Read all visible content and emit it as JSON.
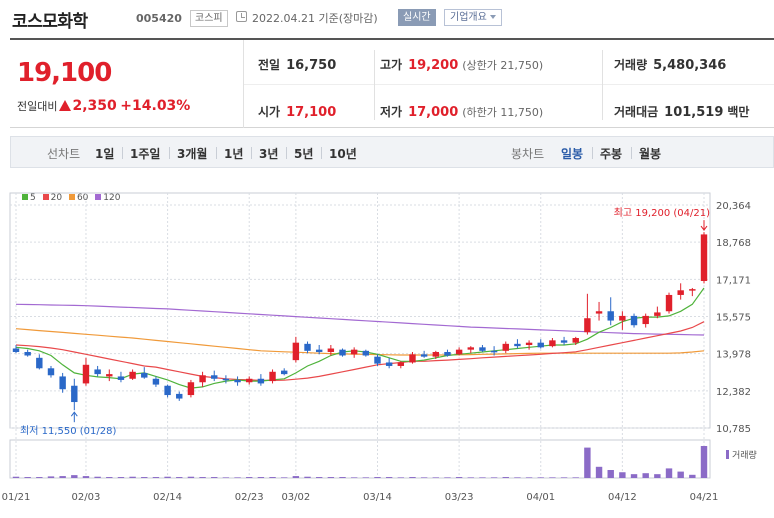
{
  "header": {
    "stock_name": "코스모화학",
    "stock_code": "005420",
    "market": "코스피",
    "date": "2022.04.21 기준(장마감)",
    "live_button": "실시간",
    "overview_button": "기업개요"
  },
  "quote": {
    "price": "19,100",
    "change_label": "전일대비",
    "change_amount": "2,350",
    "change_percent": "+14.03%",
    "prev_close_label": "전일",
    "prev_close": "16,750",
    "open_label": "시가",
    "open": "17,100",
    "high_label": "고가",
    "high": "19,200",
    "upper_limit": "(상한가 21,750)",
    "low_label": "저가",
    "low": "17,000",
    "lower_limit": "(하한가 11,750)",
    "volume_label": "거래량",
    "volume": "5,480,346",
    "amount_label": "거래대금",
    "amount": "101,519",
    "amount_unit": "백만"
  },
  "period_bar": {
    "line_label": "선차트",
    "line_periods": [
      "1일",
      "1주일",
      "3개월",
      "1년",
      "3년",
      "5년",
      "10년"
    ],
    "candle_label": "봉차트",
    "candle_periods": [
      "일봉",
      "주봉",
      "월봉"
    ],
    "selected": "일봉"
  },
  "legend": [
    {
      "label": "5",
      "color": "#4fb33b"
    },
    {
      "label": "20",
      "color": "#e9494b"
    },
    {
      "label": "60",
      "color": "#f09a3a"
    },
    {
      "label": "120",
      "color": "#a36ad2"
    }
  ],
  "chart_data": {
    "type": "candlestick",
    "x_labels": [
      "01/21",
      "02/03",
      "02/14",
      "02/23",
      "03/02",
      "03/14",
      "03/23",
      "04/01",
      "04/12",
      "04/21"
    ],
    "y_ticks": [
      "20,364",
      "18,768",
      "17,171",
      "15,575",
      "13,978",
      "12,382",
      "10,785"
    ],
    "ylim": [
      10785,
      20364
    ],
    "high_annotation": "최고 19,200 (04/21)",
    "low_annotation": "최저 11,550 (01/28)",
    "volume_label": "거래량",
    "candles": [
      {
        "d": "01/21",
        "o": 14200,
        "h": 14350,
        "l": 14000,
        "c": 14050
      },
      {
        "d": "01/24",
        "o": 14050,
        "h": 14150,
        "l": 13850,
        "c": 13900
      },
      {
        "d": "01/25",
        "o": 13800,
        "h": 13950,
        "l": 13300,
        "c": 13350
      },
      {
        "d": "01/26",
        "o": 13350,
        "h": 13450,
        "l": 12950,
        "c": 13050
      },
      {
        "d": "01/27",
        "o": 13000,
        "h": 13150,
        "l": 12300,
        "c": 12450
      },
      {
        "d": "01/28",
        "o": 12600,
        "h": 12900,
        "l": 11550,
        "c": 11900
      },
      {
        "d": "02/03",
        "o": 12700,
        "h": 13800,
        "l": 12600,
        "c": 13500
      },
      {
        "d": "02/04",
        "o": 13300,
        "h": 13450,
        "l": 13000,
        "c": 13100
      },
      {
        "d": "02/07",
        "o": 13000,
        "h": 13300,
        "l": 12800,
        "c": 13100
      },
      {
        "d": "02/08",
        "o": 13000,
        "h": 13200,
        "l": 12750,
        "c": 12850
      },
      {
        "d": "02/09",
        "o": 12900,
        "h": 13300,
        "l": 12850,
        "c": 13200
      },
      {
        "d": "02/10",
        "o": 13150,
        "h": 13400,
        "l": 12900,
        "c": 12950
      },
      {
        "d": "02/11",
        "o": 12900,
        "h": 13000,
        "l": 12550,
        "c": 12650
      },
      {
        "d": "02/14",
        "o": 12600,
        "h": 12650,
        "l": 12100,
        "c": 12200
      },
      {
        "d": "02/15",
        "o": 12250,
        "h": 12350,
        "l": 11950,
        "c": 12050
      },
      {
        "d": "02/16",
        "o": 12200,
        "h": 12850,
        "l": 12100,
        "c": 12750
      },
      {
        "d": "02/17",
        "o": 12750,
        "h": 13200,
        "l": 12550,
        "c": 13050
      },
      {
        "d": "02/18",
        "o": 13050,
        "h": 13250,
        "l": 12800,
        "c": 12900
      },
      {
        "d": "02/21",
        "o": 12900,
        "h": 13050,
        "l": 12700,
        "c": 12850
      },
      {
        "d": "02/22",
        "o": 12850,
        "h": 13000,
        "l": 12600,
        "c": 12750
      },
      {
        "d": "02/23",
        "o": 12750,
        "h": 13000,
        "l": 12650,
        "c": 12900
      },
      {
        "d": "02/24",
        "o": 12900,
        "h": 13100,
        "l": 12600,
        "c": 12700
      },
      {
        "d": "02/25",
        "o": 12800,
        "h": 13300,
        "l": 12700,
        "c": 13200
      },
      {
        "d": "02/28",
        "o": 13250,
        "h": 13350,
        "l": 13050,
        "c": 13100
      },
      {
        "d": "03/02",
        "o": 13700,
        "h": 14700,
        "l": 13600,
        "c": 14450
      },
      {
        "d": "03/03",
        "o": 14400,
        "h": 14500,
        "l": 14000,
        "c": 14100
      },
      {
        "d": "03/04",
        "o": 14150,
        "h": 14350,
        "l": 13950,
        "c": 14050
      },
      {
        "d": "03/07",
        "o": 14050,
        "h": 14350,
        "l": 13900,
        "c": 14200
      },
      {
        "d": "03/08",
        "o": 14150,
        "h": 14200,
        "l": 13850,
        "c": 13900
      },
      {
        "d": "03/10",
        "o": 13950,
        "h": 14250,
        "l": 13800,
        "c": 14150
      },
      {
        "d": "03/11",
        "o": 14100,
        "h": 14150,
        "l": 13850,
        "c": 13900
      },
      {
        "d": "03/14",
        "o": 13850,
        "h": 13950,
        "l": 13450,
        "c": 13550
      },
      {
        "d": "03/15",
        "o": 13600,
        "h": 13800,
        "l": 13350,
        "c": 13450
      },
      {
        "d": "03/16",
        "o": 13450,
        "h": 13650,
        "l": 13350,
        "c": 13600
      },
      {
        "d": "03/17",
        "o": 13600,
        "h": 14050,
        "l": 13550,
        "c": 13950
      },
      {
        "d": "03/18",
        "o": 13950,
        "h": 14100,
        "l": 13800,
        "c": 13850
      },
      {
        "d": "03/21",
        "o": 13850,
        "h": 14100,
        "l": 13750,
        "c": 14050
      },
      {
        "d": "03/22",
        "o": 14050,
        "h": 14150,
        "l": 13850,
        "c": 13900
      },
      {
        "d": "03/23",
        "o": 13950,
        "h": 14250,
        "l": 13900,
        "c": 14150
      },
      {
        "d": "03/24",
        "o": 14150,
        "h": 14300,
        "l": 14000,
        "c": 14250
      },
      {
        "d": "03/25",
        "o": 14250,
        "h": 14350,
        "l": 14050,
        "c": 14100
      },
      {
        "d": "03/28",
        "o": 14100,
        "h": 14300,
        "l": 13900,
        "c": 14050
      },
      {
        "d": "03/29",
        "o": 14100,
        "h": 14500,
        "l": 14000,
        "c": 14400
      },
      {
        "d": "03/30",
        "o": 14400,
        "h": 14600,
        "l": 14200,
        "c": 14300
      },
      {
        "d": "03/31",
        "o": 14350,
        "h": 14550,
        "l": 14150,
        "c": 14450
      },
      {
        "d": "04/01",
        "o": 14450,
        "h": 14600,
        "l": 14200,
        "c": 14250
      },
      {
        "d": "04/04",
        "o": 14300,
        "h": 14650,
        "l": 14250,
        "c": 14550
      },
      {
        "d": "04/05",
        "o": 14550,
        "h": 14700,
        "l": 14350,
        "c": 14450
      },
      {
        "d": "04/06",
        "o": 14450,
        "h": 14700,
        "l": 14350,
        "c": 14650
      },
      {
        "d": "04/07",
        "o": 14900,
        "h": 16550,
        "l": 14800,
        "c": 15500
      },
      {
        "d": "04/08",
        "o": 15700,
        "h": 16200,
        "l": 15400,
        "c": 15800
      },
      {
        "d": "04/11",
        "o": 15800,
        "h": 16400,
        "l": 15200,
        "c": 15400
      },
      {
        "d": "04/12",
        "o": 15400,
        "h": 15800,
        "l": 15000,
        "c": 15600
      },
      {
        "d": "04/13",
        "o": 15600,
        "h": 15700,
        "l": 15100,
        "c": 15200
      },
      {
        "d": "04/14",
        "o": 15250,
        "h": 15700,
        "l": 15100,
        "c": 15600
      },
      {
        "d": "04/15",
        "o": 15600,
        "h": 16000,
        "l": 15500,
        "c": 15750
      },
      {
        "d": "04/18",
        "o": 15800,
        "h": 16600,
        "l": 15700,
        "c": 16500
      },
      {
        "d": "04/19",
        "o": 16500,
        "h": 17000,
        "l": 16300,
        "c": 16700
      },
      {
        "d": "04/20",
        "o": 16750,
        "h": 16800,
        "l": 16450,
        "c": 16750
      },
      {
        "d": "04/21",
        "o": 17100,
        "h": 19200,
        "l": 17000,
        "c": 19100
      }
    ],
    "ma5": [
      14250,
      14200,
      14100,
      13900,
      13500,
      13150,
      13050,
      12980,
      12950,
      12900,
      13100,
      13150,
      13000,
      12850,
      12650,
      12500,
      12550,
      12700,
      12800,
      12850,
      12800,
      12800,
      12850,
      12900,
      13150,
      13450,
      13650,
      13900,
      14050,
      14100,
      14050,
      13950,
      13800,
      13650,
      13650,
      13700,
      13800,
      13900,
      13950,
      14000,
      14050,
      14100,
      14150,
      14200,
      14250,
      14300,
      14350,
      14350,
      14400,
      14600,
      14900,
      15100,
      15350,
      15500,
      15550,
      15550,
      15600,
      15800,
      16100,
      16800
    ],
    "ma20": [
      14350,
      14320,
      14280,
      14220,
      14150,
      14050,
      13950,
      13850,
      13750,
      13650,
      13550,
      13450,
      13400,
      13300,
      13200,
      13100,
      13000,
      12950,
      12900,
      12870,
      12850,
      12830,
      12830,
      12840,
      12880,
      12930,
      13000,
      13100,
      13200,
      13300,
      13400,
      13500,
      13550,
      13600,
      13650,
      13650,
      13680,
      13700,
      13730,
      13760,
      13800,
      13830,
      13860,
      13890,
      13920,
      13950,
      13990,
      14020,
      14060,
      14150,
      14250,
      14350,
      14450,
      14550,
      14650,
      14750,
      14850,
      14950,
      15100,
      15350
    ],
    "ma60": [
      15050,
      15010,
      14970,
      14930,
      14890,
      14850,
      14810,
      14770,
      14730,
      14690,
      14650,
      14600,
      14550,
      14500,
      14450,
      14400,
      14350,
      14300,
      14250,
      14200,
      14150,
      14100,
      14080,
      14060,
      14040,
      14020,
      14000,
      13980,
      13970,
      13960,
      13950,
      13940,
      13930,
      13920,
      13920,
      13920,
      13920,
      13920,
      13930,
      13940,
      13950,
      13960,
      13970,
      13980,
      13990,
      14000,
      14000,
      14000,
      14000,
      14000,
      14000,
      14000,
      14000,
      14000,
      14000,
      14000,
      14000,
      14010,
      14050,
      14100
    ],
    "ma120": [
      16100,
      16090,
      16080,
      16070,
      16060,
      16050,
      16040,
      16020,
      16000,
      15980,
      15960,
      15940,
      15920,
      15900,
      15870,
      15840,
      15810,
      15780,
      15750,
      15720,
      15690,
      15660,
      15630,
      15600,
      15570,
      15540,
      15510,
      15480,
      15450,
      15420,
      15390,
      15360,
      15330,
      15300,
      15270,
      15240,
      15210,
      15180,
      15150,
      15120,
      15100,
      15080,
      15060,
      15040,
      15020,
      15000,
      14980,
      14960,
      14940,
      14920,
      14900,
      14880,
      14860,
      14840,
      14830,
      14820,
      14810,
      14800,
      14790,
      14780
    ],
    "volume": [
      0.04,
      0.03,
      0.03,
      0.05,
      0.06,
      0.09,
      0.06,
      0.04,
      0.03,
      0.03,
      0.04,
      0.03,
      0.03,
      0.04,
      0.03,
      0.04,
      0.03,
      0.03,
      0.02,
      0.02,
      0.03,
      0.03,
      0.03,
      0.02,
      0.06,
      0.04,
      0.03,
      0.03,
      0.03,
      0.02,
      0.02,
      0.03,
      0.03,
      0.02,
      0.03,
      0.02,
      0.02,
      0.02,
      0.03,
      0.02,
      0.02,
      0.02,
      0.03,
      0.02,
      0.02,
      0.02,
      0.02,
      0.02,
      0.02,
      0.95,
      0.35,
      0.25,
      0.18,
      0.12,
      0.15,
      0.12,
      0.3,
      0.2,
      0.1,
      1.0
    ]
  }
}
